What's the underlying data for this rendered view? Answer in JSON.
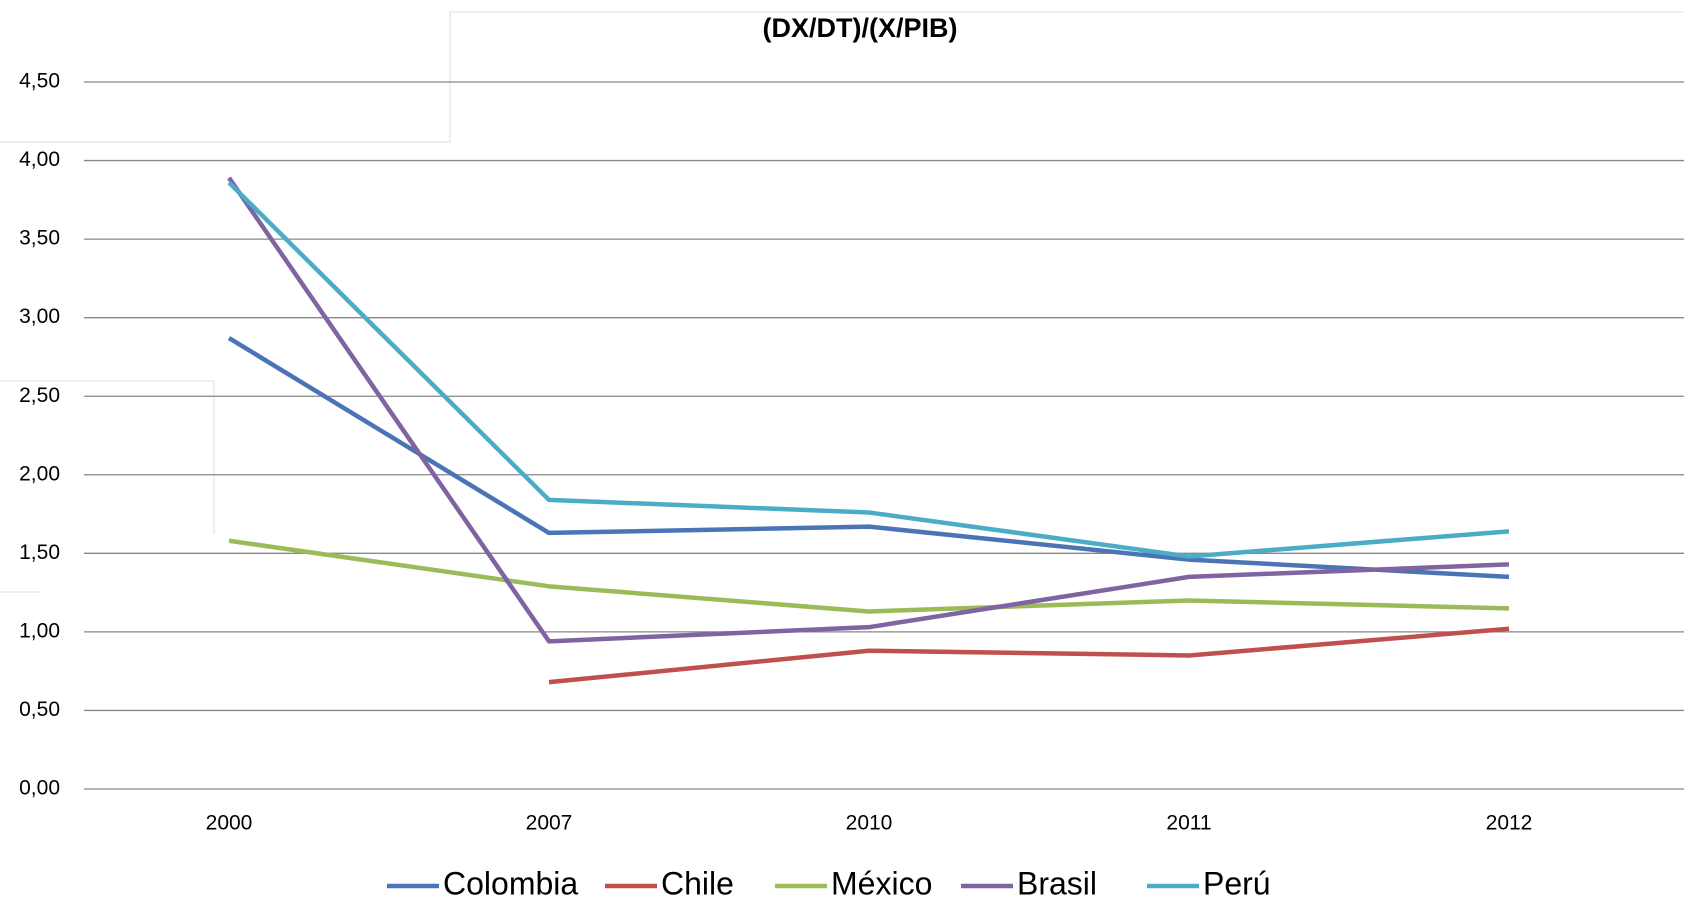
{
  "chart_data": {
    "type": "line",
    "title": "(DX/DT)/(X/PIB)",
    "categories": [
      "2000",
      "2007",
      "2010",
      "2011",
      "2012"
    ],
    "series": [
      {
        "name": "Colombia",
        "color": "#4a74b5",
        "values": [
          2.87,
          1.63,
          1.67,
          1.46,
          1.35
        ]
      },
      {
        "name": "Chile",
        "color": "#c0504d",
        "values": [
          null,
          0.68,
          0.88,
          0.85,
          1.02
        ]
      },
      {
        "name": "México",
        "color": "#9bbb59",
        "values": [
          1.58,
          1.29,
          1.13,
          1.2,
          1.15
        ]
      },
      {
        "name": "Brasil",
        "color": "#8064a2",
        "values": [
          3.89,
          0.94,
          1.03,
          1.35,
          1.43
        ]
      },
      {
        "name": "Perú",
        "color": "#4bacc6",
        "values": [
          3.86,
          1.84,
          1.76,
          1.48,
          1.64
        ]
      }
    ],
    "ylim": [
      0,
      4.5
    ],
    "yticks": [
      {
        "value": 0,
        "label": "0,00"
      },
      {
        "value": 0.5,
        "label": "0,50"
      },
      {
        "value": 1,
        "label": "1,00"
      },
      {
        "value": 1.5,
        "label": "1,50"
      },
      {
        "value": 2,
        "label": "2,00"
      },
      {
        "value": 2.5,
        "label": "2,50"
      },
      {
        "value": 3,
        "label": "3,00"
      },
      {
        "value": 3.5,
        "label": "3,50"
      },
      {
        "value": 4,
        "label": "4,00"
      },
      {
        "value": 4.5,
        "label": "4,50"
      }
    ],
    "grid": true,
    "legend": "bottom"
  }
}
